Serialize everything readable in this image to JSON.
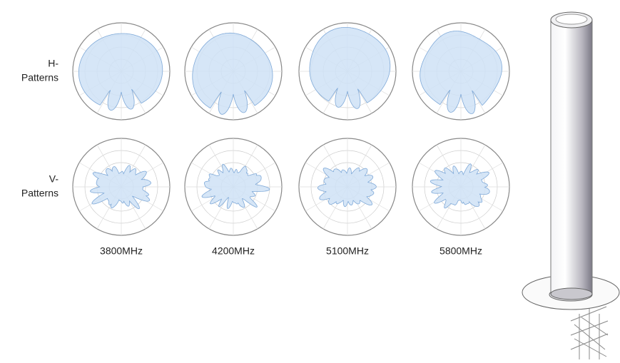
{
  "rows": [
    {
      "label": [
        "H-",
        "Patterns"
      ]
    },
    {
      "label": [
        "V-",
        "Patterns"
      ]
    }
  ],
  "frequencies": [
    "3800MHz",
    "4200MHz",
    "5100MHz",
    "5800MHz"
  ]
}
